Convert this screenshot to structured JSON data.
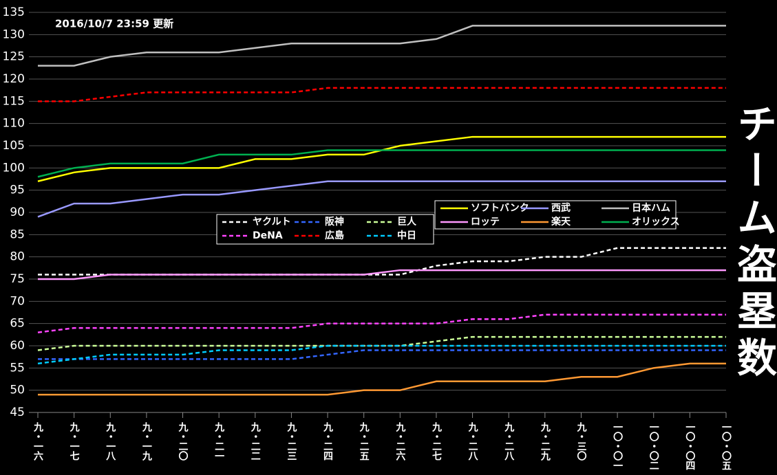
{
  "chart_data": {
    "type": "line",
    "title": "チーム盗塁数",
    "annotation": "2016/10/7  23:59 更新",
    "categories": [
      "九・一六",
      "九・一七",
      "九・一八",
      "九・一九",
      "九・二〇",
      "九・二一",
      "九・二二",
      "九・二三",
      "九・二四",
      "九・二五",
      "九・二六",
      "九・二七",
      "九・二八",
      "九・二八",
      "九・二九",
      "九・三〇",
      "一〇・〇一",
      "一〇・〇二",
      "一〇・〇四",
      "一〇・〇五"
    ],
    "ylim": [
      45,
      135
    ],
    "yticks": [
      45,
      50,
      55,
      60,
      65,
      70,
      75,
      80,
      85,
      90,
      95,
      100,
      105,
      110,
      115,
      120,
      125,
      130,
      135
    ],
    "grid": true,
    "series": [
      {
        "name": "ヤクルト",
        "color": "#ffffff",
        "style": "dashed",
        "values": [
          76,
          76,
          76,
          76,
          76,
          76,
          76,
          76,
          76,
          76,
          76,
          78,
          79,
          79,
          80,
          80,
          82,
          82,
          82,
          82
        ]
      },
      {
        "name": "阪神",
        "color": "#3366ff",
        "style": "dashed",
        "values": [
          57,
          57,
          57,
          57,
          57,
          57,
          57,
          57,
          58,
          59,
          59,
          59,
          59,
          59,
          59,
          59,
          59,
          59,
          59,
          59
        ]
      },
      {
        "name": "巨人",
        "color": "#ccff99",
        "style": "dashed",
        "values": [
          59,
          60,
          60,
          60,
          60,
          60,
          60,
          60,
          60,
          60,
          60,
          61,
          62,
          62,
          62,
          62,
          62,
          62,
          62,
          62
        ]
      },
      {
        "name": "DeNA",
        "color": "#ff44ff",
        "style": "dashed",
        "values": [
          63,
          64,
          64,
          64,
          64,
          64,
          64,
          64,
          65,
          65,
          65,
          65,
          66,
          66,
          67,
          67,
          67,
          67,
          67,
          67
        ]
      },
      {
        "name": "広島",
        "color": "#ff0000",
        "style": "dashed",
        "values": [
          115,
          115,
          116,
          117,
          117,
          117,
          117,
          117,
          118,
          118,
          118,
          118,
          118,
          118,
          118,
          118,
          118,
          118,
          118,
          118
        ]
      },
      {
        "name": "中日",
        "color": "#00ccff",
        "style": "dashed",
        "values": [
          56,
          57,
          58,
          58,
          58,
          59,
          59,
          59,
          60,
          60,
          60,
          60,
          60,
          60,
          60,
          60,
          60,
          60,
          60,
          60
        ]
      },
      {
        "name": "ソフトバンク",
        "color": "#ffff00",
        "style": "solid",
        "values": [
          97,
          99,
          100,
          100,
          100,
          100,
          102,
          102,
          103,
          103,
          105,
          106,
          107,
          107,
          107,
          107,
          107,
          107,
          107,
          107
        ]
      },
      {
        "name": "西武",
        "color": "#9999ff",
        "style": "solid",
        "values": [
          89,
          92,
          92,
          93,
          94,
          94,
          95,
          96,
          97,
          97,
          97,
          97,
          97,
          97,
          97,
          97,
          97,
          97,
          97,
          97
        ]
      },
      {
        "name": "日本ハム",
        "color": "#c0c0c0",
        "style": "solid",
        "values": [
          123,
          123,
          125,
          126,
          126,
          126,
          127,
          128,
          128,
          128,
          128,
          129,
          132,
          132,
          132,
          132,
          132,
          132,
          132,
          132
        ]
      },
      {
        "name": "ロッテ",
        "color": "#ff99ff",
        "style": "solid",
        "values": [
          75,
          75,
          76,
          76,
          76,
          76,
          76,
          76,
          76,
          76,
          77,
          77,
          77,
          77,
          77,
          77,
          77,
          77,
          77,
          77
        ]
      },
      {
        "name": "楽天",
        "color": "#ff9933",
        "style": "solid",
        "values": [
          49,
          49,
          49,
          49,
          49,
          49,
          49,
          49,
          49,
          50,
          50,
          52,
          52,
          52,
          52,
          53,
          53,
          55,
          56,
          56
        ]
      },
      {
        "name": "オリックス",
        "color": "#00b050",
        "style": "solid",
        "values": [
          98,
          100,
          101,
          101,
          101,
          103,
          103,
          103,
          104,
          104,
          104,
          104,
          104,
          104,
          104,
          104,
          104,
          104,
          104,
          104
        ]
      }
    ]
  }
}
